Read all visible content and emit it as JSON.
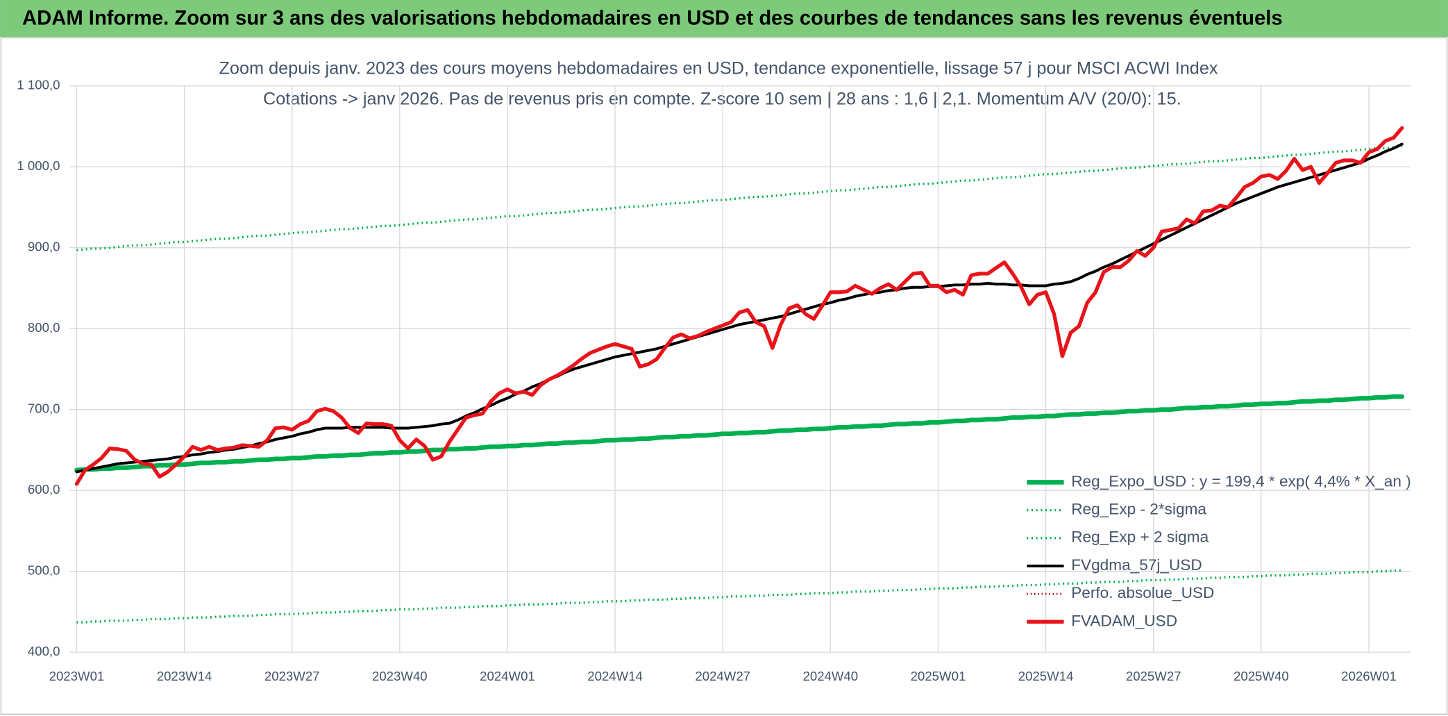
{
  "header": {
    "title": "ADAM Informe. Zoom sur 3 ans des valorisations hebdomadaires en USD et des courbes de tendances sans les revenus éventuels"
  },
  "chart_data": {
    "type": "line",
    "title": "Zoom depuis janv. 2023 des cours moyens hebdomadaires en USD, tendance exponentielle, lissage 57 j pour MSCI ACWI Index",
    "subtitle": "Cotations -> janv 2026. Pas de revenus pris en compte. Z-score 10 sem | 28 ans : 1,6 | 2,1. Momentum A/V (20/0): 15.",
    "ylim": [
      400,
      1100
    ],
    "yticks": [
      {
        "value": 400,
        "label": "400,0"
      },
      {
        "value": 500,
        "label": "500,0"
      },
      {
        "value": 600,
        "label": "600,0"
      },
      {
        "value": 700,
        "label": "700,0"
      },
      {
        "value": 800,
        "label": "800,0"
      },
      {
        "value": 900,
        "label": "900,0"
      },
      {
        "value": 1000,
        "label": "1 000,0"
      },
      {
        "value": 1100,
        "label": "1 100,0"
      }
    ],
    "grid": true,
    "legend": "bottom-right",
    "categories": [
      "2023W01",
      null,
      null,
      null,
      null,
      null,
      null,
      null,
      null,
      null,
      null,
      null,
      null,
      "2023W14",
      null,
      null,
      null,
      null,
      null,
      null,
      null,
      null,
      null,
      null,
      null,
      null,
      "2023W27",
      null,
      null,
      null,
      null,
      null,
      null,
      null,
      null,
      null,
      null,
      null,
      null,
      "2023W40",
      null,
      null,
      null,
      null,
      null,
      null,
      null,
      null,
      null,
      null,
      null,
      null,
      "2024W01",
      null,
      null,
      null,
      null,
      null,
      null,
      null,
      null,
      null,
      null,
      null,
      null,
      "2024W14",
      null,
      null,
      null,
      null,
      null,
      null,
      null,
      null,
      null,
      null,
      null,
      null,
      "2024W27",
      null,
      null,
      null,
      null,
      null,
      null,
      null,
      null,
      null,
      null,
      null,
      null,
      "2024W40",
      null,
      null,
      null,
      null,
      null,
      null,
      null,
      null,
      null,
      null,
      null,
      null,
      "2025W01",
      null,
      null,
      null,
      null,
      null,
      null,
      null,
      null,
      null,
      null,
      null,
      null,
      "2025W14",
      null,
      null,
      null,
      null,
      null,
      null,
      null,
      null,
      null,
      null,
      null,
      null,
      "2025W27",
      null,
      null,
      null,
      null,
      null,
      null,
      null,
      null,
      null,
      null,
      null,
      null,
      "2025W40",
      null,
      null,
      null,
      null,
      null,
      null,
      null,
      null,
      null,
      null,
      null,
      null,
      "2026W01",
      null,
      null,
      null,
      null
    ],
    "series": [
      {
        "name": "Reg_Expo_USD : y = 199,4 * exp( 4,4% *  X_an )",
        "color": "#00b050",
        "line_width": 5,
        "dash": "none",
        "values": [
          625,
          626,
          626,
          627,
          627,
          628,
          628,
          629,
          630,
          630,
          631,
          631,
          632,
          632,
          633,
          634,
          634,
          635,
          635,
          636,
          636,
          637,
          638,
          638,
          639,
          639,
          640,
          640,
          641,
          642,
          642,
          643,
          643,
          644,
          644,
          645,
          646,
          646,
          647,
          647,
          648,
          648,
          649,
          650,
          650,
          651,
          651,
          652,
          652,
          653,
          654,
          654,
          655,
          655,
          656,
          656,
          657,
          658,
          658,
          659,
          659,
          660,
          660,
          661,
          662,
          662,
          663,
          663,
          664,
          664,
          665,
          666,
          666,
          667,
          667,
          668,
          668,
          669,
          670,
          670,
          671,
          671,
          672,
          672,
          673,
          674,
          674,
          675,
          675,
          676,
          676,
          677,
          678,
          678,
          679,
          679,
          680,
          680,
          681,
          682,
          682,
          683,
          683,
          684,
          684,
          685,
          686,
          686,
          687,
          687,
          688,
          688,
          689,
          690,
          690,
          691,
          691,
          692,
          692,
          693,
          694,
          694,
          695,
          695,
          696,
          696,
          697,
          698,
          698,
          699,
          699,
          700,
          700,
          701,
          702,
          702,
          703,
          703,
          704,
          704,
          705,
          706,
          706,
          707,
          707,
          708,
          708,
          709,
          710,
          710,
          711,
          711,
          712,
          712,
          713,
          714,
          714,
          715,
          715,
          716,
          716
        ]
      },
      {
        "name": "Reg_Exp - 2*sigma",
        "color": "#00b050",
        "line_width": 2.5,
        "dash": "dotted",
        "values": [
          437,
          437,
          438,
          438,
          439,
          439,
          439,
          440,
          440,
          441,
          441,
          441,
          442,
          442,
          443,
          443,
          443,
          444,
          444,
          445,
          445,
          445,
          446,
          446,
          447,
          447,
          447,
          448,
          448,
          449,
          449,
          449,
          450,
          450,
          451,
          451,
          451,
          452,
          452,
          453,
          453,
          453,
          454,
          454,
          455,
          455,
          455,
          456,
          456,
          457,
          457,
          457,
          458,
          458,
          459,
          459,
          459,
          460,
          460,
          461,
          461,
          461,
          462,
          462,
          463,
          463,
          463,
          464,
          464,
          465,
          465,
          465,
          466,
          466,
          467,
          467,
          467,
          468,
          468,
          469,
          469,
          469,
          470,
          470,
          471,
          471,
          471,
          472,
          472,
          473,
          473,
          473,
          474,
          474,
          475,
          475,
          475,
          476,
          476,
          477,
          477,
          477,
          478,
          478,
          479,
          479,
          479,
          480,
          480,
          481,
          481,
          481,
          482,
          482,
          483,
          483,
          483,
          484,
          484,
          485,
          485,
          485,
          486,
          486,
          487,
          487,
          487,
          488,
          488,
          489,
          489,
          489,
          490,
          490,
          491,
          491,
          491,
          492,
          492,
          493,
          493,
          493,
          494,
          494,
          495,
          495,
          495,
          496,
          496,
          497,
          497,
          497,
          498,
          498,
          499,
          499,
          499,
          500,
          500,
          501,
          501
        ]
      },
      {
        "name": "Reg_Exp + 2 sigma",
        "color": "#00b050",
        "line_width": 2.5,
        "dash": "dotted",
        "values": [
          897,
          898,
          899,
          899,
          900,
          901,
          902,
          903,
          903,
          904,
          905,
          906,
          907,
          907,
          908,
          909,
          910,
          911,
          911,
          912,
          913,
          914,
          915,
          915,
          916,
          917,
          918,
          919,
          919,
          920,
          921,
          922,
          923,
          923,
          924,
          925,
          926,
          927,
          927,
          928,
          929,
          930,
          931,
          931,
          932,
          933,
          934,
          935,
          935,
          936,
          937,
          938,
          939,
          939,
          940,
          941,
          942,
          943,
          943,
          944,
          945,
          946,
          947,
          947,
          948,
          949,
          950,
          951,
          951,
          952,
          953,
          954,
          955,
          955,
          956,
          957,
          958,
          959,
          959,
          960,
          961,
          962,
          963,
          963,
          964,
          965,
          966,
          967,
          967,
          968,
          969,
          970,
          971,
          971,
          972,
          973,
          974,
          975,
          975,
          976,
          977,
          978,
          979,
          979,
          980,
          981,
          982,
          983,
          983,
          984,
          985,
          986,
          987,
          987,
          988,
          989,
          990,
          991,
          991,
          992,
          993,
          994,
          995,
          995,
          996,
          997,
          998,
          999,
          999,
          1000,
          1001,
          1002,
          1003,
          1003,
          1004,
          1005,
          1006,
          1007,
          1007,
          1008,
          1009,
          1010,
          1011,
          1011,
          1012,
          1013,
          1014,
          1015,
          1015,
          1016,
          1017,
          1018,
          1019,
          1019,
          1020,
          1021,
          1022,
          1023,
          1023,
          1024,
          1025
        ]
      },
      {
        "name": "FVgdma_57j_USD",
        "color": "#000000",
        "line_width": 3,
        "dash": "none",
        "values": [
          623,
          625,
          627,
          629,
          631,
          633,
          634,
          635,
          636,
          637,
          638,
          639,
          641,
          642,
          644,
          645,
          647,
          648,
          650,
          651,
          653,
          655,
          658,
          660,
          663,
          665,
          667,
          670,
          672,
          675,
          677,
          677,
          677,
          678,
          678,
          678,
          678,
          678,
          677,
          677,
          677,
          678,
          679,
          680,
          682,
          683,
          687,
          692,
          696,
          701,
          705,
          710,
          714,
          719,
          723,
          728,
          732,
          737,
          741,
          746,
          750,
          753,
          756,
          759,
          762,
          765,
          767,
          769,
          771,
          773,
          775,
          778,
          781,
          784,
          787,
          790,
          793,
          796,
          799,
          802,
          805,
          807,
          809,
          811,
          813,
          815,
          818,
          821,
          824,
          827,
          830,
          832,
          835,
          837,
          840,
          842,
          844,
          845,
          847,
          848,
          850,
          851,
          851,
          852,
          852,
          853,
          854,
          854,
          855,
          855,
          856,
          855,
          855,
          854,
          854,
          853,
          853,
          853,
          855,
          856,
          858,
          862,
          867,
          871,
          876,
          880,
          885,
          890,
          895,
          900,
          905,
          910,
          915,
          920,
          925,
          930,
          935,
          940,
          945,
          950,
          955,
          959,
          963,
          967,
          971,
          975,
          978,
          981,
          984,
          987,
          990,
          993,
          996,
          999,
          1002,
          1005,
          1010,
          1014,
          1019,
          1023,
          1028
        ]
      },
      {
        "name": "Perfo. absolue_USD",
        "color": "#c00000",
        "line_width": 2,
        "dash": "dotted",
        "values": [
          608,
          625,
          632,
          640,
          652,
          651,
          649,
          638,
          633,
          632,
          617,
          623,
          632,
          642,
          654,
          650,
          654,
          650,
          652,
          653,
          656,
          655,
          654,
          662,
          677,
          678,
          675,
          682,
          686,
          698,
          701,
          698,
          690,
          677,
          671,
          683,
          682,
          682,
          680,
          662,
          652,
          663,
          655,
          638,
          642,
          660,
          675,
          690,
          693,
          695,
          710,
          720,
          725,
          720,
          722,
          718,
          730,
          737,
          742,
          748,
          755,
          763,
          770,
          774,
          778,
          781,
          778,
          775,
          753,
          756,
          762,
          776,
          789,
          793,
          788,
          791,
          796,
          800,
          804,
          808,
          820,
          823,
          808,
          803,
          776,
          805,
          825,
          829,
          818,
          812,
          828,
          845,
          845,
          846,
          853,
          848,
          843,
          850,
          855,
          848,
          858,
          868,
          869,
          853,
          853,
          845,
          848,
          842,
          866,
          868,
          868,
          875,
          882,
          868,
          852,
          830,
          842,
          845,
          818,
          766,
          795,
          803,
          832,
          845,
          870,
          876,
          876,
          884,
          896,
          890,
          900,
          920,
          922,
          924,
          935,
          930,
          945,
          946,
          952,
          950,
          962,
          975,
          980,
          988,
          990,
          985,
          995,
          1010,
          996,
          1000,
          980,
          992,
          1005,
          1008,
          1008,
          1005,
          1018,
          1022,
          1032,
          1036,
          1048
        ]
      },
      {
        "name": "FVADAM_USD",
        "color": "#e8141a",
        "line_width": 4,
        "dash": "none",
        "values": [
          608,
          625,
          632,
          640,
          652,
          651,
          649,
          638,
          633,
          632,
          617,
          623,
          632,
          642,
          654,
          650,
          654,
          650,
          652,
          653,
          656,
          655,
          654,
          662,
          677,
          678,
          675,
          682,
          686,
          698,
          701,
          698,
          690,
          677,
          671,
          683,
          682,
          682,
          680,
          662,
          652,
          663,
          655,
          638,
          642,
          660,
          675,
          690,
          693,
          695,
          710,
          720,
          725,
          720,
          722,
          718,
          730,
          737,
          742,
          748,
          755,
          763,
          770,
          774,
          778,
          781,
          778,
          775,
          753,
          756,
          762,
          776,
          789,
          793,
          788,
          791,
          796,
          800,
          804,
          808,
          820,
          823,
          808,
          803,
          776,
          805,
          825,
          829,
          818,
          812,
          828,
          845,
          845,
          846,
          853,
          848,
          843,
          850,
          855,
          848,
          858,
          868,
          869,
          853,
          853,
          845,
          848,
          842,
          866,
          868,
          868,
          875,
          882,
          868,
          852,
          830,
          842,
          845,
          818,
          766,
          795,
          803,
          832,
          845,
          870,
          876,
          876,
          884,
          896,
          890,
          900,
          920,
          922,
          924,
          935,
          930,
          945,
          946,
          952,
          950,
          962,
          975,
          980,
          988,
          990,
          985,
          995,
          1010,
          996,
          1000,
          980,
          992,
          1005,
          1008,
          1008,
          1005,
          1018,
          1022,
          1032,
          1036,
          1048
        ]
      }
    ]
  }
}
